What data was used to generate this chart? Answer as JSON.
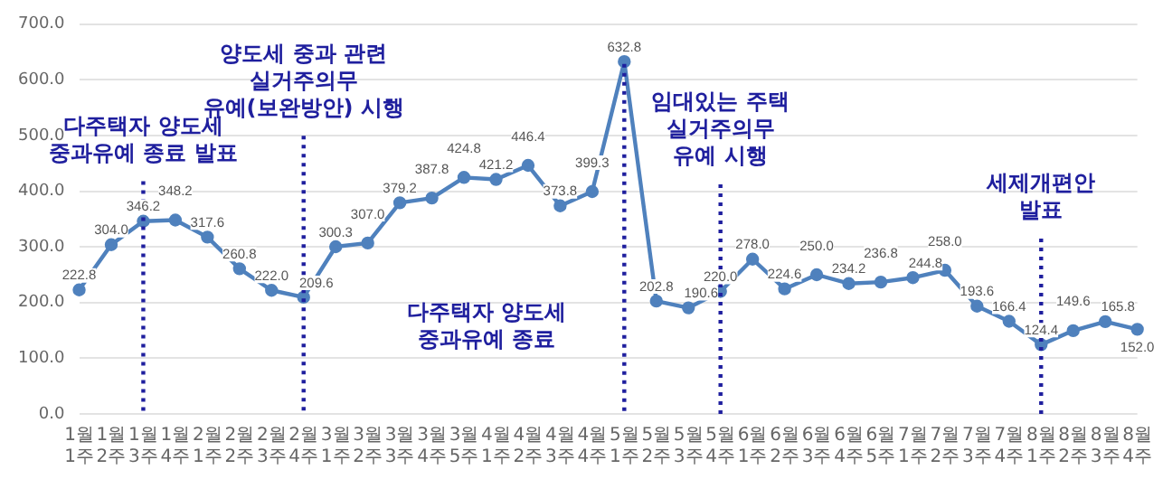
{
  "chart_data": {
    "type": "line",
    "categories": [
      "1월 1주",
      "1월 2주",
      "1월 3주",
      "1월 4주",
      "2월 1주",
      "2월 2주",
      "2월 3주",
      "2월 4주",
      "3월 1주",
      "3월 2주",
      "3월 3주",
      "3월 4주",
      "3월 5주",
      "4월 1주",
      "4월 2주",
      "4월 3주",
      "4월 4주",
      "5월 1주",
      "5월 2주",
      "5월 3주",
      "5월 4주",
      "6월 1주",
      "6월 2주",
      "6월 3주",
      "6월 4주",
      "6월 5주",
      "7월 1주",
      "7월 2주",
      "7월 3주",
      "7월 4주",
      "8월 1주",
      "8월 2주",
      "8월 3주",
      "8월 4주"
    ],
    "series": [
      {
        "color": "#4f81bd",
        "value_labels": [
          "222.8",
          "304.0",
          "346.2",
          "348.2",
          "317.6",
          "260.8",
          "222.0",
          "209.6",
          "300.3",
          "307.0",
          "379.2",
          "387.8",
          "424.8",
          "421.2",
          "446.4",
          "373.8",
          "399.3",
          "632.8",
          "202.8",
          "190.6",
          "220.0",
          "278.0",
          "224.6",
          "250.0",
          "234.2",
          "236.8",
          "244.8",
          "258.0",
          "193.6",
          "166.4",
          "124.4",
          "149.6",
          "165.8",
          "152.0"
        ],
        "values": [
          222.8,
          304.0,
          346.2,
          348.2,
          317.6,
          260.8,
          222.0,
          209.6,
          300.3,
          307.0,
          379.2,
          387.8,
          424.8,
          421.2,
          446.4,
          373.8,
          399.3,
          632.8,
          202.8,
          190.6,
          220.0,
          278.0,
          224.6,
          250.0,
          234.2,
          236.8,
          244.8,
          258.0,
          193.6,
          166.4,
          124.4,
          149.6,
          165.8,
          152.0
        ]
      }
    ],
    "ylim": [
      0,
      700
    ],
    "yticks": [
      {
        "value": 0,
        "label": "0.0"
      },
      {
        "value": 100,
        "label": "100.0"
      },
      {
        "value": 200,
        "label": "200.0"
      },
      {
        "value": 300,
        "label": "300.0"
      },
      {
        "value": 400,
        "label": "400.0"
      },
      {
        "value": 500,
        "label": "500.0"
      },
      {
        "value": 600,
        "label": "600.0"
      },
      {
        "value": 700,
        "label": "700.0"
      }
    ],
    "grid": "y",
    "legend": false,
    "marker": "circle",
    "line_style": "solid",
    "ref_lines": [
      {
        "axis": "x",
        "value": "1월 3주",
        "label": "다주택자 양도세\n중과유예 종료 발표",
        "color": "#1f1f9e",
        "line_style": "dotted"
      },
      {
        "axis": "x",
        "value": "2월 4주",
        "label": "양도세 중과 관련\n실거주의무\n유예(보완방안) 시행",
        "color": "#1f1f9e",
        "line_style": "dotted"
      },
      {
        "axis": "x",
        "value": "5월 1주",
        "label": "다주택자 양도세\n중과유예 종료",
        "color": "#1f1f9e",
        "line_style": "dotted"
      },
      {
        "axis": "x",
        "value": "5월 4주",
        "label": "임대있는 주택\n실거주의무\n유예 시행",
        "color": "#1f1f9e",
        "line_style": "dotted"
      },
      {
        "axis": "x",
        "value": "8월 1주",
        "label": "세제개편안\n발표",
        "color": "#1f1f9e",
        "line_style": "dotted"
      }
    ]
  }
}
